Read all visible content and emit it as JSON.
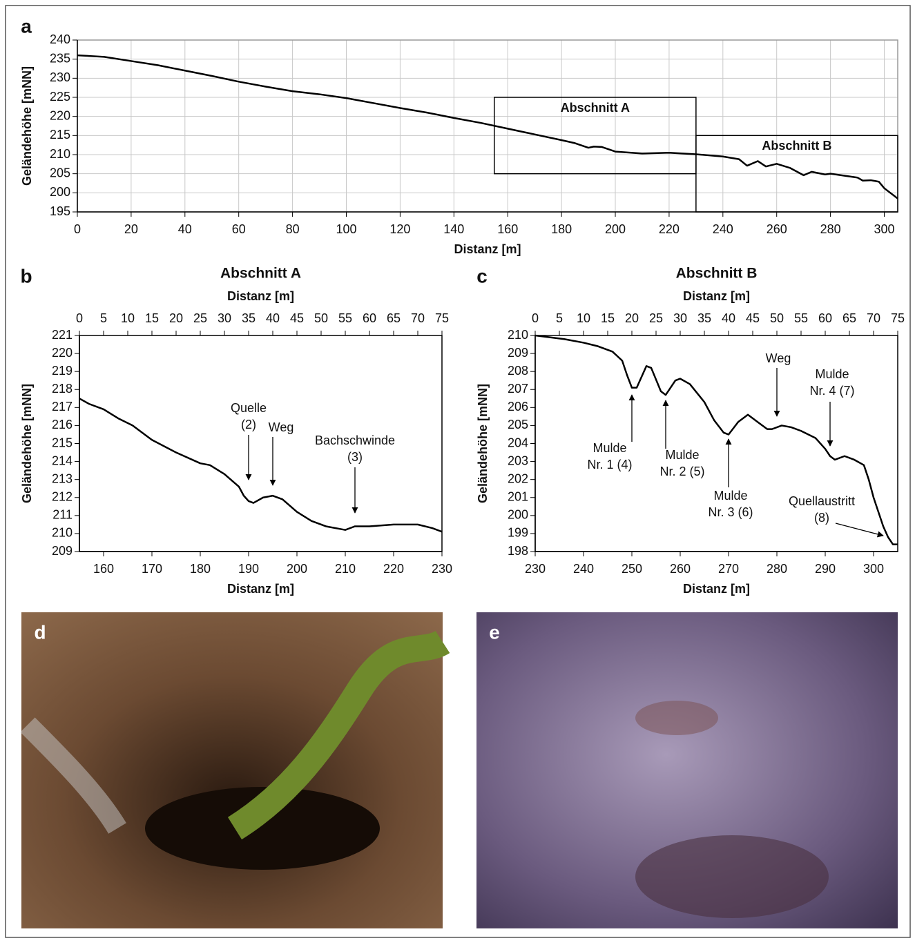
{
  "chart_data": [
    {
      "type": "line",
      "panel": "a",
      "xlabel": "Distanz [m]",
      "ylabel": "Geländehöhe [mNN]",
      "grid": true,
      "color": "#000000",
      "xlim": [
        0,
        305
      ],
      "xticks": [
        0,
        20,
        40,
        60,
        80,
        100,
        120,
        140,
        160,
        180,
        200,
        220,
        240,
        260,
        280,
        300
      ],
      "ylim": [
        195,
        240
      ],
      "yticks": [
        195,
        200,
        205,
        210,
        215,
        220,
        225,
        230,
        235,
        240
      ],
      "x": [
        0,
        10,
        20,
        30,
        40,
        50,
        60,
        70,
        80,
        90,
        100,
        110,
        120,
        130,
        140,
        150,
        160,
        170,
        180,
        185,
        190,
        192,
        195,
        200,
        210,
        220,
        230,
        240,
        246,
        249,
        253,
        256,
        260,
        265,
        270,
        273,
        278,
        280,
        290,
        292,
        295,
        298,
        300,
        305
      ],
      "values": [
        236,
        235.6,
        234.5,
        233.4,
        232,
        230.6,
        229.1,
        227.8,
        226.6,
        225.8,
        224.8,
        223.5,
        222.2,
        221,
        219.6,
        218.3,
        216.8,
        215.3,
        213.8,
        213,
        211.8,
        212.1,
        212,
        210.8,
        210.3,
        210.5,
        210.1,
        209.5,
        208.8,
        207.1,
        208.3,
        206.9,
        207.6,
        206.5,
        204.6,
        205.5,
        204.8,
        205,
        204,
        203.2,
        203.3,
        202.9,
        201.2,
        198.5
      ],
      "boxes": [
        {
          "label": "Abschnitt A",
          "xlim": [
            155,
            230
          ],
          "ylim": [
            205,
            225
          ]
        },
        {
          "label": "Abschnitt B",
          "xlim": [
            230,
            305
          ],
          "ylim": [
            195,
            215
          ]
        }
      ]
    },
    {
      "type": "line",
      "panel": "b",
      "title": "Abschnitt A",
      "xlabel": "Distanz [m]",
      "x2label": "Distanz [m]",
      "ylabel": "Geländehöhe [mNN]",
      "grid": false,
      "color": "#000000",
      "xlim": [
        155,
        230
      ],
      "xticks": [
        160,
        170,
        180,
        190,
        200,
        210,
        220,
        230
      ],
      "x2lim": [
        0,
        75
      ],
      "x2ticks": [
        0,
        5,
        10,
        15,
        20,
        25,
        30,
        35,
        40,
        45,
        50,
        55,
        60,
        65,
        70,
        75
      ],
      "ylim": [
        209,
        221
      ],
      "yticks": [
        209,
        210,
        211,
        212,
        213,
        214,
        215,
        216,
        217,
        218,
        219,
        220,
        221
      ],
      "x": [
        155,
        157,
        160,
        163,
        166,
        170,
        175,
        180,
        182,
        185,
        188,
        189,
        190,
        191,
        193,
        195,
        197,
        200,
        203,
        206,
        210,
        212,
        215,
        220,
        225,
        228,
        230
      ],
      "values": [
        217.5,
        217.2,
        216.9,
        216.4,
        216,
        215.2,
        214.5,
        213.9,
        213.8,
        213.3,
        212.6,
        212.1,
        211.8,
        211.7,
        212,
        212.1,
        211.9,
        211.2,
        210.7,
        210.4,
        210.2,
        210.4,
        210.4,
        210.5,
        210.5,
        210.3,
        210.1
      ],
      "annotations": [
        {
          "lines": [
            "Quelle",
            "(2)"
          ],
          "x": 190
        },
        {
          "lines": [
            "Weg"
          ],
          "x": 195
        },
        {
          "lines": [
            "Bachschwinde",
            "(3)"
          ],
          "x": 212
        }
      ]
    },
    {
      "type": "line",
      "panel": "c",
      "title": "Abschnitt B",
      "xlabel": "Distanz [m]",
      "x2label": "Distanz [m]",
      "ylabel": "Geländehöhe [mNN]",
      "grid": false,
      "color": "#000000",
      "xlim": [
        230,
        305
      ],
      "xticks": [
        230,
        240,
        250,
        260,
        270,
        280,
        290,
        300
      ],
      "x2lim": [
        0,
        75
      ],
      "x2ticks": [
        0,
        5,
        10,
        15,
        20,
        25,
        30,
        35,
        40,
        45,
        50,
        55,
        60,
        65,
        70,
        75
      ],
      "ylim": [
        198,
        210
      ],
      "yticks": [
        198,
        199,
        200,
        201,
        202,
        203,
        204,
        205,
        206,
        207,
        208,
        209,
        210
      ],
      "x": [
        230,
        233,
        236,
        240,
        243,
        246,
        248,
        249,
        250,
        251,
        253,
        254,
        256,
        257,
        259,
        260,
        262,
        265,
        267,
        269,
        270,
        272,
        274,
        276,
        278,
        279,
        281,
        283,
        285,
        288,
        290,
        291,
        292,
        294,
        296,
        298,
        299,
        300,
        301,
        302,
        303,
        304,
        305
      ],
      "values": [
        210,
        209.9,
        209.8,
        209.6,
        209.4,
        209.1,
        208.6,
        207.8,
        207.1,
        207.1,
        208.3,
        208.2,
        206.9,
        206.7,
        207.5,
        207.6,
        207.3,
        206.3,
        205.3,
        204.6,
        204.5,
        205.2,
        205.6,
        205.2,
        204.8,
        204.8,
        205,
        204.9,
        204.7,
        204.3,
        203.7,
        203.3,
        203.1,
        203.3,
        203.1,
        202.8,
        202,
        201,
        200.2,
        199.4,
        198.8,
        198.4,
        198.4
      ],
      "annotations": [
        {
          "lines": [
            "Mulde",
            "Nr. 1 (4)"
          ],
          "x": 250
        },
        {
          "lines": [
            "Mulde",
            "Nr. 2 (5)"
          ],
          "x": 257
        },
        {
          "lines": [
            "Mulde",
            "Nr. 3 (6)"
          ],
          "x": 270
        },
        {
          "lines": [
            "Weg"
          ],
          "x": 280
        },
        {
          "lines": [
            "Mulde",
            "Nr. 4 (7)"
          ],
          "x": 291
        },
        {
          "lines": [
            "Quellaustritt",
            "(8)"
          ],
          "x": 302
        }
      ]
    }
  ],
  "photos": [
    {
      "panel": "d"
    },
    {
      "panel": "e"
    }
  ]
}
